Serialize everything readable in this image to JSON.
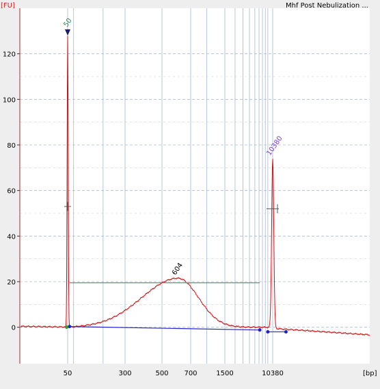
{
  "chart_data": {
    "type": "line",
    "title": "Mhf Post Nebulization ...",
    "y_unit": "[FU]",
    "x_unit": "[bp]",
    "x_scale": "log",
    "y_range": [
      -16,
      140
    ],
    "y_ticks": [
      0,
      20,
      40,
      60,
      80,
      100,
      120
    ],
    "x_tick_labels": [
      "50",
      "300",
      "500",
      "700",
      "1500",
      "10380"
    ],
    "grid": true,
    "peaks": [
      {
        "label": "50",
        "bp": 50,
        "fu": 128,
        "color": "#2e8b57"
      },
      {
        "label": "604",
        "bp": 604,
        "fu": 21.5,
        "color": "#000000"
      },
      {
        "label": "10380",
        "bp": 10380,
        "fu": 74,
        "color": "#7a3fc8"
      }
    ],
    "smear_region": {
      "from_bp": 53,
      "to_bp": 5200,
      "level_fu": 19.5
    },
    "colors": {
      "trace": "#cc1111",
      "baseline": "#2222cc",
      "smear": "#3a9a6a",
      "grid": "#a8b8d0",
      "marker_bg": "#ffffff"
    }
  }
}
